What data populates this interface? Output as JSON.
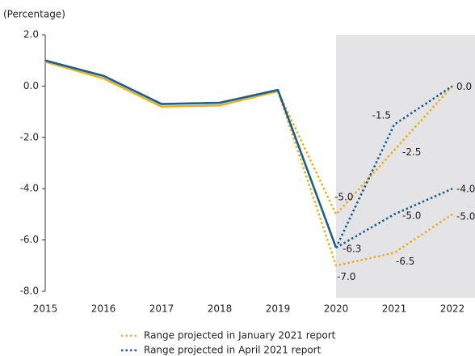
{
  "chart_data": {
    "type": "line",
    "y_label": "(Percentage)",
    "categories": [
      "2015",
      "2016",
      "2017",
      "2018",
      "2019",
      "2020",
      "2021",
      "2022"
    ],
    "ylim": [
      -8,
      2
    ],
    "yticks": [
      {
        "value": -8,
        "label": "-8.0"
      },
      {
        "value": -6,
        "label": "-6.0"
      },
      {
        "value": -4,
        "label": "-4.0"
      },
      {
        "value": -2,
        "label": "-2.0"
      },
      {
        "value": 0,
        "label": "0.0"
      },
      {
        "value": 2,
        "label": "2.0"
      }
    ],
    "shade": [
      "2020",
      "2022"
    ],
    "shade_color": "#e4e4e6",
    "series": [
      {
        "color": "#e8b020",
        "style": "solid",
        "values": [
          0.95,
          0.3,
          -0.8,
          -0.75,
          -0.2,
          null,
          null,
          null
        ]
      },
      {
        "color": "#1a5e8e",
        "style": "solid",
        "values": [
          1.0,
          0.4,
          -0.7,
          -0.65,
          -0.15,
          -6.3,
          null,
          null
        ],
        "value_labels": [
          null,
          null,
          null,
          null,
          null,
          "-6.3",
          null,
          null
        ]
      },
      {
        "color": "#e8b020",
        "style": "dotted",
        "values": [
          null,
          null,
          null,
          null,
          -0.2,
          -5,
          -2.5,
          0
        ],
        "value_labels": [
          null,
          null,
          null,
          null,
          null,
          "-5.0",
          "-2.5",
          null
        ]
      },
      {
        "color": "#e8b020",
        "style": "dotted",
        "values": [
          null,
          null,
          null,
          null,
          -0.2,
          -7,
          -6.5,
          -5
        ],
        "value_labels": [
          null,
          null,
          null,
          null,
          null,
          "-7.0",
          "-6.5",
          "-5.0"
        ]
      },
      {
        "color": "#1a5e8e",
        "style": "dotted",
        "values": [
          null,
          null,
          null,
          null,
          null,
          -6.3,
          -1.5,
          0
        ],
        "value_labels": [
          null,
          null,
          null,
          null,
          null,
          null,
          "-1.5",
          "0.0"
        ]
      },
      {
        "color": "#1a5e8e",
        "style": "dotted",
        "values": [
          null,
          null,
          null,
          null,
          null,
          -6.3,
          -5,
          -4
        ],
        "value_labels": [
          null,
          null,
          null,
          null,
          null,
          null,
          "-5.0",
          "-4.0"
        ]
      }
    ],
    "legend": [
      {
        "name": "Range projected in January 2021 report",
        "color": "#e8b020"
      },
      {
        "name": "Range projected in April 2021 report",
        "color": "#1a5e8e"
      }
    ]
  }
}
